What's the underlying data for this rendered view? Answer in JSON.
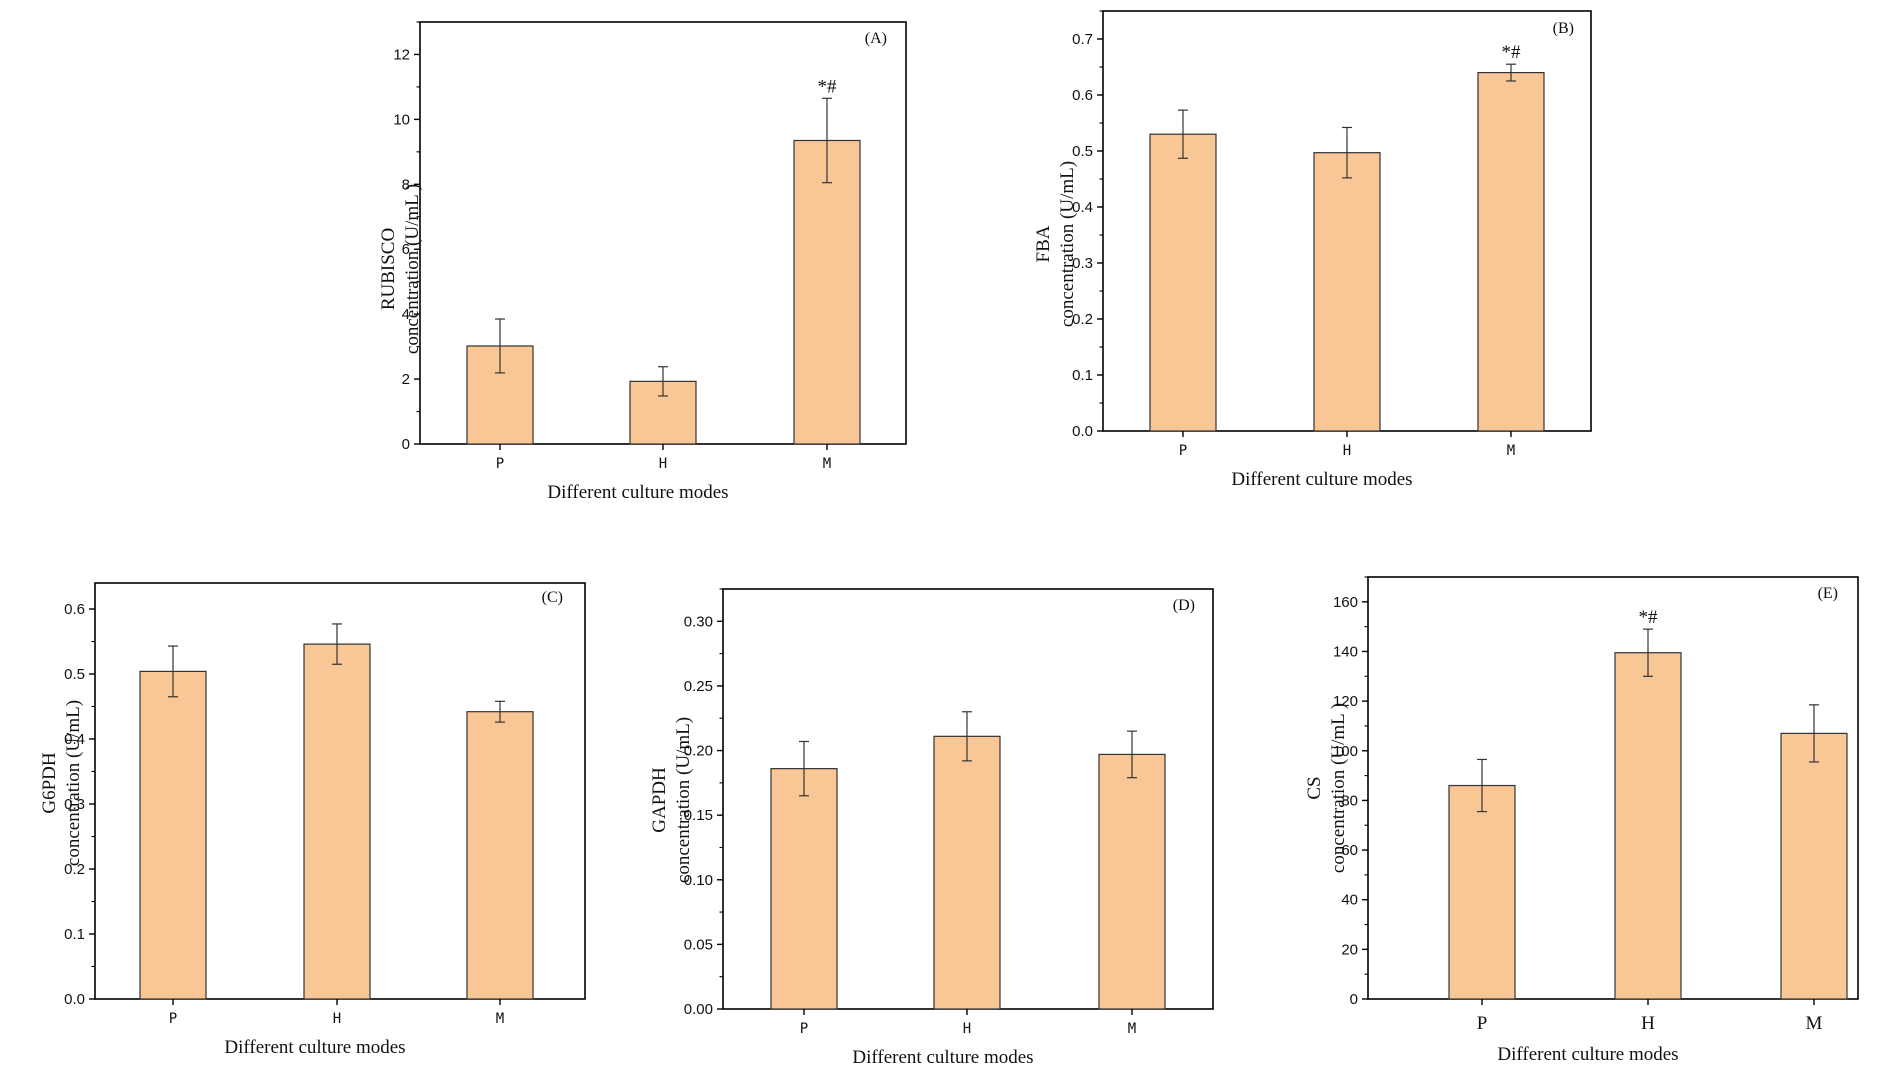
{
  "colors": {
    "bar_fill": "#f9c696",
    "bar_stroke": "#333333",
    "error_bar": "#333333",
    "axis": "#000000"
  },
  "chart_data": [
    {
      "type": "bar",
      "panel": "(A)",
      "categories": [
        "P",
        "H",
        "M"
      ],
      "values": [
        3.02,
        1.93,
        9.35
      ],
      "errors": [
        0.83,
        0.45,
        1.3
      ],
      "significance": [
        "",
        "",
        "*#"
      ],
      "xlabel": "Different culture modes",
      "ylabel": [
        "RUBISCO",
        "concentration (U/mL )"
      ],
      "ylim": [
        0,
        13
      ],
      "yticks": [
        0,
        2,
        4,
        6,
        8,
        10,
        12
      ],
      "ytick_labels": [
        "0",
        "2",
        "4",
        "6",
        "8",
        "10",
        "12"
      ]
    },
    {
      "type": "bar",
      "panel": "(B)",
      "categories": [
        "P",
        "H",
        "M"
      ],
      "values": [
        0.53,
        0.497,
        0.64
      ],
      "errors": [
        0.043,
        0.045,
        0.015
      ],
      "significance": [
        "",
        "",
        "*#"
      ],
      "xlabel": "Different culture modes",
      "ylabel": [
        "FBA",
        "concentration (U/mL)"
      ],
      "ylim": [
        0,
        0.75
      ],
      "yticks": [
        0,
        0.1,
        0.2,
        0.3,
        0.4,
        0.5,
        0.6,
        0.7
      ],
      "ytick_labels": [
        "0.0",
        "0.1",
        "0.2",
        "0.3",
        "0.4",
        "0.5",
        "0.6",
        "0.7"
      ]
    },
    {
      "type": "bar",
      "panel": "(C)",
      "categories": [
        "P",
        "H",
        "M"
      ],
      "values": [
        0.504,
        0.546,
        0.442
      ],
      "errors": [
        0.039,
        0.031,
        0.016
      ],
      "significance": [
        "",
        "",
        ""
      ],
      "xlabel": "Different culture modes",
      "ylabel": [
        "G6PDH",
        "concentration (U/mL)"
      ],
      "ylim": [
        0,
        0.64
      ],
      "yticks": [
        0,
        0.1,
        0.2,
        0.3,
        0.4,
        0.5,
        0.6
      ],
      "ytick_labels": [
        "0.0",
        "0.1",
        "0.2",
        "0.3",
        "0.4",
        "0.5",
        "0.6"
      ]
    },
    {
      "type": "bar",
      "panel": "(D)",
      "categories": [
        "P",
        "H",
        "M"
      ],
      "values": [
        0.186,
        0.211,
        0.197
      ],
      "errors": [
        0.021,
        0.019,
        0.018
      ],
      "significance": [
        "",
        "",
        ""
      ],
      "xlabel": "Different culture modes",
      "ylabel": [
        "GAPDH",
        "concentration (U/mL)"
      ],
      "ylim": [
        0,
        0.325
      ],
      "yticks": [
        0,
        0.05,
        0.1,
        0.15,
        0.2,
        0.25,
        0.3
      ],
      "ytick_labels": [
        "0.00",
        "0.05",
        "0.10",
        "0.15",
        "0.20",
        "0.25",
        "0.30"
      ]
    },
    {
      "type": "bar",
      "panel": "(E)",
      "categories": [
        "P",
        "H",
        "M"
      ],
      "values": [
        86,
        139.5,
        107
      ],
      "errors": [
        10.5,
        9.5,
        11.5
      ],
      "significance": [
        "",
        "*#",
        ""
      ],
      "xlabel": "Different culture modes",
      "ylabel": [
        "CS",
        "concentration (U/mL )"
      ],
      "ylim": [
        0,
        170
      ],
      "yticks": [
        0,
        20,
        40,
        60,
        80,
        100,
        120,
        140,
        160
      ],
      "ytick_labels": [
        "0",
        "20",
        "40",
        "60",
        "80",
        "100",
        "120",
        "140",
        "160"
      ]
    }
  ]
}
